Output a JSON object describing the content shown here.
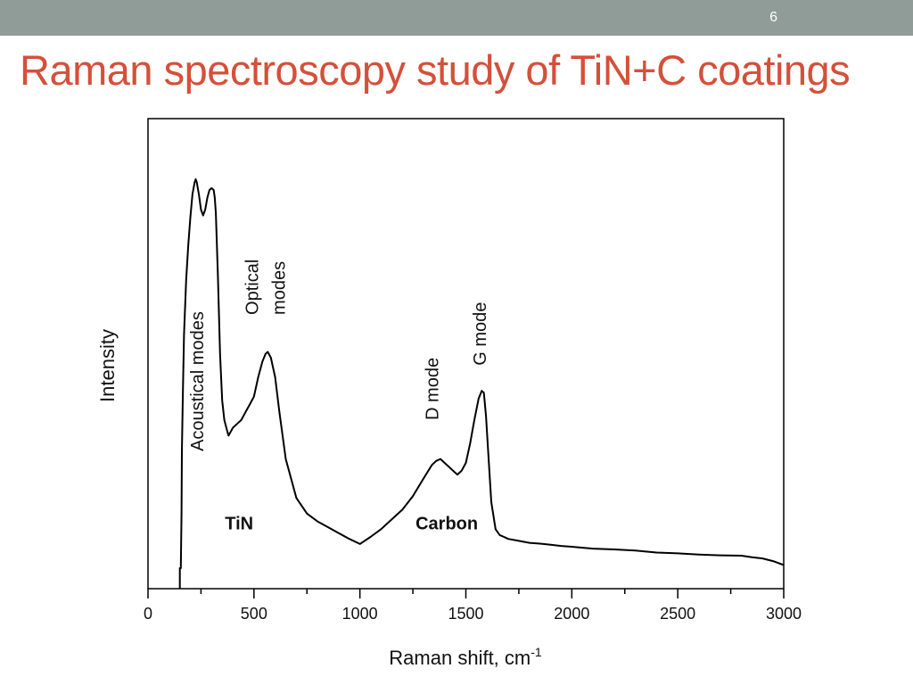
{
  "slide": {
    "number": "6",
    "title": "Raman spectroscopy study of TiN+C coatings",
    "topbar_color": "#8f9c97",
    "title_color": "#d4503a"
  },
  "chart_data": {
    "type": "line",
    "title": "",
    "xlabel": "Raman shift, cm",
    "xlabel_superscript": "-1",
    "ylabel": "Intensity",
    "xlim": [
      0,
      3000
    ],
    "ylim": [
      0,
      100
    ],
    "y_tick_labels_shown": false,
    "grid": false,
    "legend": "none",
    "x_ticks": [
      0,
      500,
      1000,
      1500,
      2000,
      2500,
      3000
    ],
    "x_tick_labels": [
      "0",
      "500",
      "1000",
      "1500",
      "2000",
      "2500",
      "3000"
    ],
    "series": [
      {
        "color": "#000000",
        "x": [
          150,
          155,
          158,
          160,
          165,
          170,
          180,
          190,
          200,
          210,
          220,
          225,
          230,
          240,
          250,
          260,
          270,
          280,
          290,
          300,
          310,
          315,
          320,
          330,
          340,
          350,
          360,
          370,
          380,
          390,
          400,
          420,
          440,
          460,
          480,
          500,
          520,
          540,
          555,
          565,
          580,
          600,
          620,
          650,
          700,
          750,
          800,
          850,
          900,
          950,
          1000,
          1050,
          1100,
          1150,
          1200,
          1250,
          1300,
          1340,
          1360,
          1380,
          1400,
          1420,
          1440,
          1460,
          1480,
          1500,
          1520,
          1540,
          1560,
          1575,
          1585,
          1595,
          1605,
          1620,
          1640,
          1660,
          1680,
          1700,
          1750,
          1800,
          1850,
          1900,
          1950,
          2000,
          2100,
          2200,
          2300,
          2400,
          2500,
          2600,
          2700,
          2800,
          2850,
          2900,
          2950,
          3000
        ],
        "y": [
          0,
          0,
          14,
          30,
          46,
          60,
          74,
          83,
          90,
          96,
          99,
          99.8,
          99,
          96,
          92,
          90.5,
          92,
          95,
          97,
          97.5,
          97,
          95,
          91,
          75,
          55,
          43,
          38,
          36,
          34,
          35,
          36,
          37,
          38,
          40,
          42,
          44,
          49,
          53,
          55,
          55.5,
          54,
          49,
          40,
          28,
          18,
          14,
          12,
          10.5,
          9,
          7.5,
          6.2,
          8,
          10,
          12.5,
          15,
          18.5,
          23,
          26.5,
          27.5,
          28,
          27,
          26,
          25,
          24,
          25,
          27,
          32,
          38,
          43.5,
          45.5,
          45,
          39,
          30,
          17,
          10,
          8.5,
          8,
          7.5,
          7,
          6.5,
          6.3,
          6,
          5.7,
          5.5,
          5,
          4.8,
          4.5,
          4,
          3.8,
          3.5,
          3.3,
          3.2,
          2.8,
          2.5,
          1.8,
          0.8
        ]
      }
    ],
    "annotations": [
      {
        "text": "Acoustical modes",
        "x": 260,
        "y": 30,
        "rotation": -90
      },
      {
        "text": "Optical",
        "x": 520,
        "y": 65,
        "rotation": -90
      },
      {
        "text": "modes",
        "x": 645,
        "y": 65,
        "rotation": -90
      },
      {
        "text": "D mode",
        "x": 1370,
        "y": 38,
        "rotation": -90
      },
      {
        "text": "G mode",
        "x": 1595,
        "y": 52,
        "rotation": -90
      },
      {
        "text": "TiN",
        "x": 430,
        "y": 10,
        "bold": true
      },
      {
        "text": "Carbon",
        "x": 1410,
        "y": 10,
        "bold": true
      }
    ]
  }
}
